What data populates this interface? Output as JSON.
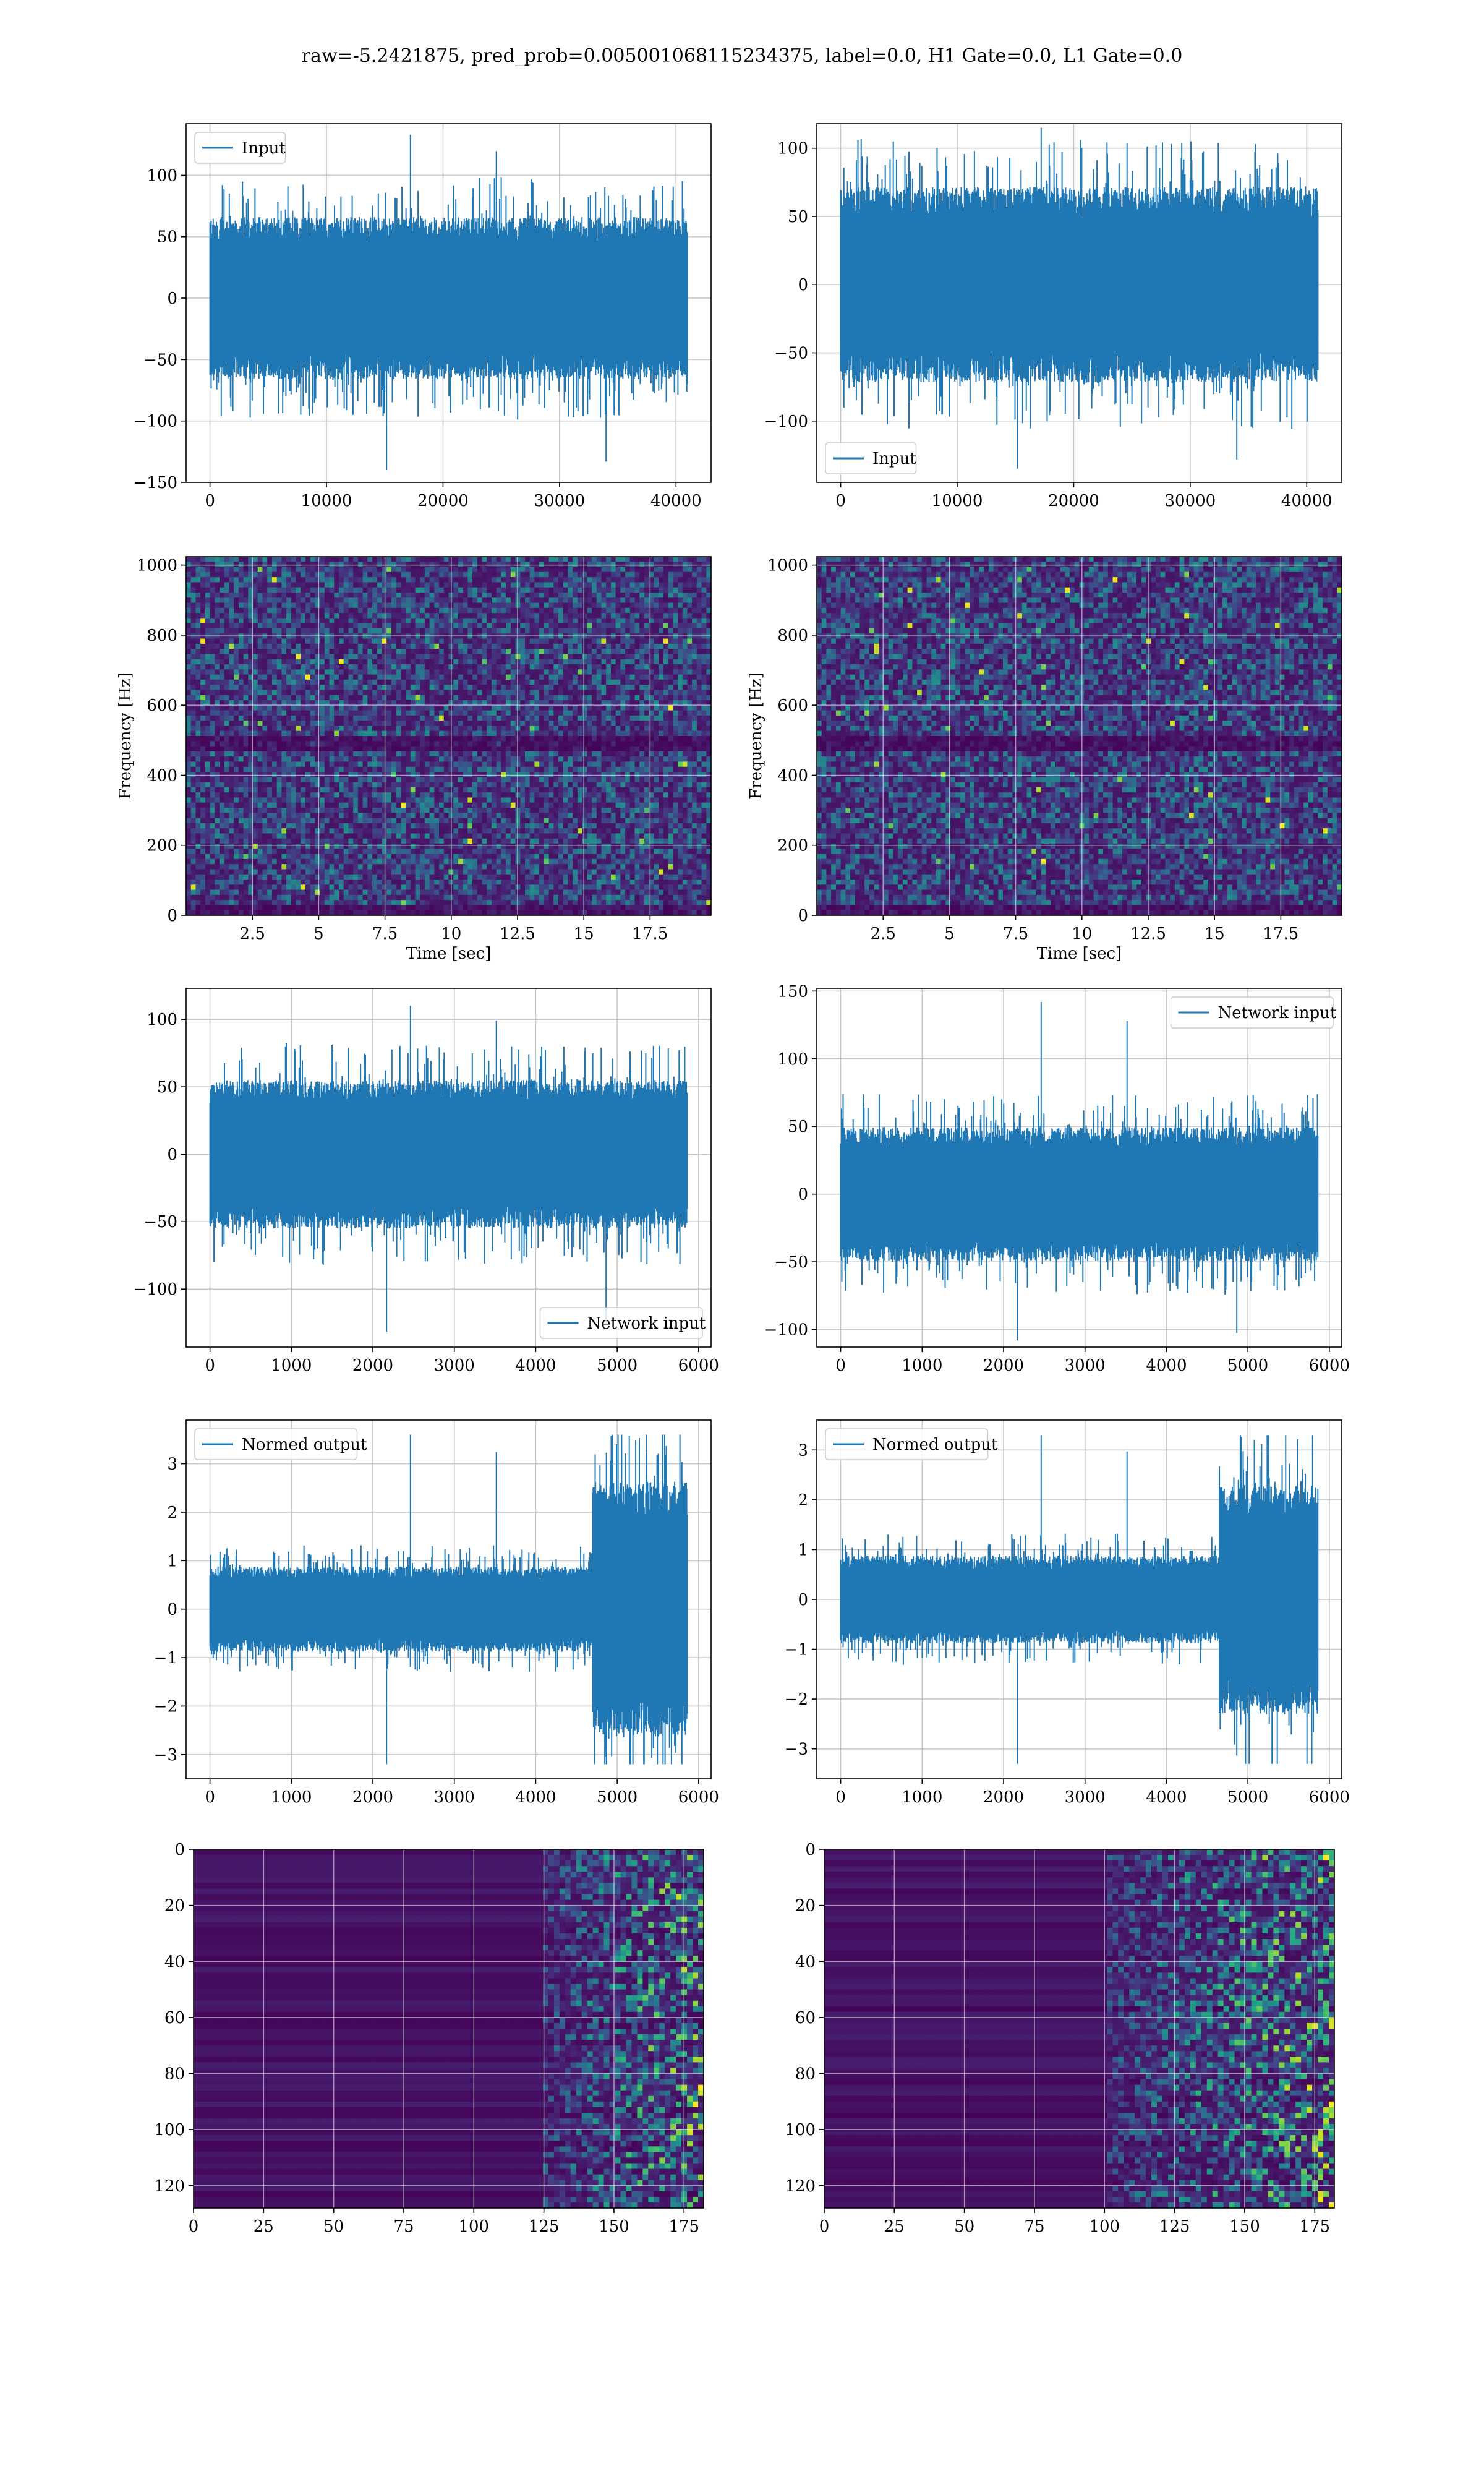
{
  "figure": {
    "suptitle": "raw=-5.2421875, pred_prob=0.005001068115234375, label=0.0, H1 Gate=0.0, L1 Gate=0.0",
    "line_color": "#1f77b4"
  },
  "chart_data": [
    {
      "type": "line",
      "panel": "row1-left",
      "series": [
        {
          "name": "Input",
          "color": "#1f77b4"
        }
      ],
      "signal": {
        "n": 40960,
        "amplitude_typical": 60,
        "extreme_min": -140,
        "extreme_max": 133
      },
      "xlim": [
        -2048,
        43008
      ],
      "ylim": [
        -150,
        142
      ],
      "xticks": [
        0,
        10000,
        20000,
        30000,
        40000
      ],
      "yticks": [
        -150,
        -100,
        -50,
        0,
        50,
        100
      ],
      "legend": "upper left",
      "grid": true,
      "xlabel": "",
      "ylabel": ""
    },
    {
      "type": "line",
      "panel": "row1-right",
      "series": [
        {
          "name": "Input",
          "color": "#1f77b4"
        }
      ],
      "signal": {
        "n": 40960,
        "amplitude_typical": 65,
        "extreme_min": -135,
        "extreme_max": 115
      },
      "xlim": [
        -2048,
        43008
      ],
      "ylim": [
        -145,
        118
      ],
      "xticks": [
        0,
        10000,
        20000,
        30000,
        40000
      ],
      "yticks": [
        -100,
        -50,
        0,
        50,
        100
      ],
      "legend": "lower left",
      "grid": true,
      "xlabel": "",
      "ylabel": ""
    },
    {
      "type": "heatmap",
      "panel": "row2-left",
      "description": "spectrogram",
      "xlim": [
        0,
        19.8
      ],
      "ylim": [
        0,
        1024
      ],
      "xticks": [
        2.5,
        5.0,
        7.5,
        10.0,
        12.5,
        15.0,
        17.5
      ],
      "yticks": [
        0,
        200,
        400,
        600,
        800,
        1000
      ],
      "xlabel": "Time [sec]",
      "ylabel": "Frequency [Hz]",
      "colormap": "viridis",
      "grid": true
    },
    {
      "type": "heatmap",
      "panel": "row2-right",
      "description": "spectrogram",
      "xlim": [
        0,
        19.8
      ],
      "ylim": [
        0,
        1024
      ],
      "xticks": [
        2.5,
        5.0,
        7.5,
        10.0,
        12.5,
        15.0,
        17.5
      ],
      "yticks": [
        0,
        200,
        400,
        600,
        800,
        1000
      ],
      "xlabel": "Time [sec]",
      "ylabel": "Frequency [Hz]",
      "colormap": "viridis",
      "grid": true
    },
    {
      "type": "line",
      "panel": "row3-left",
      "series": [
        {
          "name": "Network input",
          "color": "#1f77b4"
        }
      ],
      "signal": {
        "n": 5860,
        "amplitude_typical": 50,
        "extreme_min": -132,
        "extreme_max": 110
      },
      "xlim": [
        -293,
        6153
      ],
      "ylim": [
        -143,
        123
      ],
      "xticks": [
        0,
        1000,
        2000,
        3000,
        4000,
        5000,
        6000
      ],
      "yticks": [
        -100,
        -50,
        0,
        50,
        100
      ],
      "legend": "lower right",
      "grid": true,
      "xlabel": "",
      "ylabel": ""
    },
    {
      "type": "line",
      "panel": "row3-right",
      "series": [
        {
          "name": "Network input",
          "color": "#1f77b4"
        }
      ],
      "signal": {
        "n": 5860,
        "amplitude_typical": 45,
        "extreme_min": -108,
        "extreme_max": 142
      },
      "xlim": [
        -293,
        6153
      ],
      "ylim": [
        -113,
        152
      ],
      "xticks": [
        0,
        1000,
        2000,
        3000,
        4000,
        5000,
        6000
      ],
      "yticks": [
        -100,
        -50,
        0,
        50,
        100,
        150
      ],
      "legend": "upper right",
      "grid": true,
      "xlabel": "",
      "ylabel": ""
    },
    {
      "type": "line",
      "panel": "row4-left",
      "series": [
        {
          "name": "Normed output",
          "color": "#1f77b4"
        }
      ],
      "signal": {
        "n": 5860,
        "amplitude_typical": 0.8,
        "burst_start": 4700,
        "burst_amplitude": 2.4,
        "extreme_min": -3.2,
        "extreme_max": 3.6
      },
      "xlim": [
        -293,
        6153
      ],
      "ylim": [
        -3.5,
        3.9
      ],
      "xticks": [
        0,
        1000,
        2000,
        3000,
        4000,
        5000,
        6000
      ],
      "yticks": [
        -3,
        -2,
        -1,
        0,
        1,
        2,
        3
      ],
      "legend": "upper left",
      "grid": true,
      "xlabel": "",
      "ylabel": ""
    },
    {
      "type": "line",
      "panel": "row4-right",
      "series": [
        {
          "name": "Normed output",
          "color": "#1f77b4"
        }
      ],
      "signal": {
        "n": 5860,
        "amplitude_typical": 0.8,
        "burst_start": 4650,
        "burst_amplitude": 2.1,
        "extreme_min": -3.3,
        "extreme_max": 3.3
      },
      "xlim": [
        -293,
        6153
      ],
      "ylim": [
        -3.6,
        3.6
      ],
      "xticks": [
        0,
        1000,
        2000,
        3000,
        4000,
        5000,
        6000
      ],
      "yticks": [
        -3,
        -2,
        -1,
        0,
        1,
        2,
        3
      ],
      "legend": "upper left",
      "grid": true,
      "xlabel": "",
      "ylabel": ""
    },
    {
      "type": "heatmap",
      "panel": "row5-left",
      "description": "channel activations (128 rows x 183 columns)",
      "rows": 128,
      "cols": 183,
      "activity_onset_col": 125,
      "xlim": [
        0,
        182
      ],
      "ylim": [
        128,
        0
      ],
      "xticks": [
        0,
        25,
        50,
        75,
        100,
        125,
        150,
        175
      ],
      "yticks": [
        0,
        20,
        40,
        60,
        80,
        100,
        120
      ],
      "colormap": "viridis",
      "grid": true
    },
    {
      "type": "heatmap",
      "panel": "row5-right",
      "description": "channel activations (128 rows x 183 columns)",
      "rows": 128,
      "cols": 183,
      "activity_onset_col": 100,
      "xlim": [
        0,
        182
      ],
      "ylim": [
        128,
        0
      ],
      "xticks": [
        0,
        25,
        50,
        75,
        100,
        125,
        150,
        175
      ],
      "yticks": [
        0,
        20,
        40,
        60,
        80,
        100,
        120
      ],
      "colormap": "viridis",
      "grid": true
    }
  ]
}
